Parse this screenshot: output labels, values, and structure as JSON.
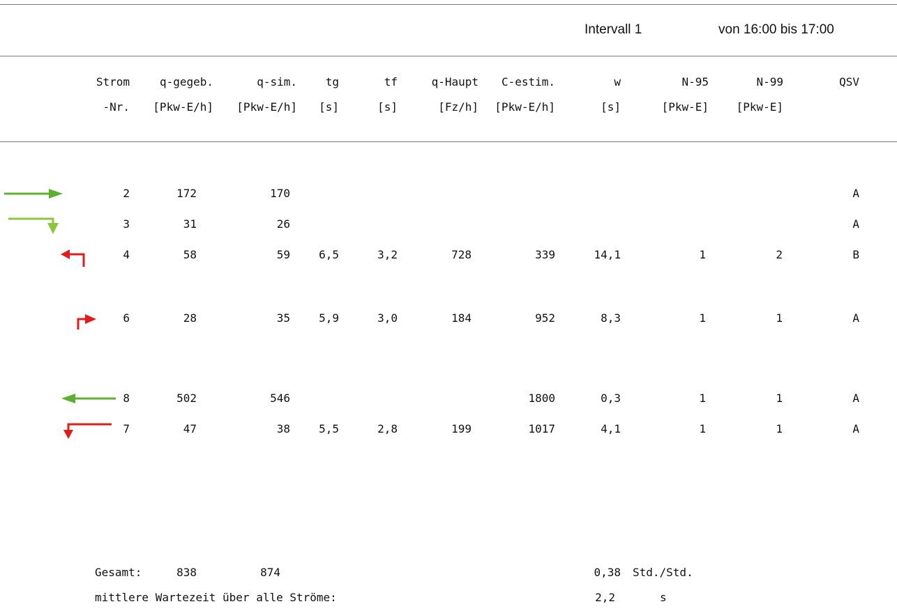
{
  "header": {
    "interval": "Intervall 1",
    "time_range": "von 16:00  bis 17:00"
  },
  "columns": {
    "line1": [
      "Strom",
      "q-gegeb.",
      "q-sim.",
      "tg",
      "tf",
      "q-Haupt",
      "C-estim.",
      "w",
      "N-95",
      "N-99",
      "QSV"
    ],
    "line2": [
      "-Nr.",
      "[Pkw-E/h]",
      "[Pkw-E/h]",
      "[s]",
      "[s]",
      "[Fz/h]",
      "[Pkw-E/h]",
      "[s]",
      "[Pkw-E]",
      "[Pkw-E]",
      ""
    ]
  },
  "rows": [
    {
      "nr": "2",
      "q_gegeb": "172",
      "q_sim": "170",
      "tg": "",
      "tf": "",
      "q_haupt": "",
      "c_estim": "",
      "w": "",
      "n95": "",
      "n99": "",
      "qsv": "A",
      "icon": "arrow-straight-right-icon",
      "color": "#5fb030"
    },
    {
      "nr": "3",
      "q_gegeb": "31",
      "q_sim": "26",
      "tg": "",
      "tf": "",
      "q_haupt": "",
      "c_estim": "",
      "w": "",
      "n95": "",
      "n99": "",
      "qsv": "A",
      "icon": "arrow-right-turn-down-icon",
      "color": "#8cc63f"
    },
    {
      "nr": "4",
      "q_gegeb": "58",
      "q_sim": "59",
      "tg": "6,5",
      "tf": "3,2",
      "q_haupt": "728",
      "c_estim": "339",
      "w": "14,1",
      "n95": "1",
      "n99": "2",
      "qsv": "B",
      "icon": "arrow-up-turn-left-icon",
      "color": "#e21b1b"
    },
    {
      "nr": "6",
      "q_gegeb": "28",
      "q_sim": "35",
      "tg": "5,9",
      "tf": "3,0",
      "q_haupt": "184",
      "c_estim": "952",
      "w": "8,3",
      "n95": "1",
      "n99": "1",
      "qsv": "A",
      "icon": "arrow-up-turn-right-icon",
      "color": "#e21b1b"
    },
    {
      "nr": "8",
      "q_gegeb": "502",
      "q_sim": "546",
      "tg": "",
      "tf": "",
      "q_haupt": "",
      "c_estim": "1800",
      "w": "0,3",
      "n95": "1",
      "n99": "1",
      "qsv": "A",
      "icon": "arrow-straight-left-icon",
      "color": "#5fb030"
    },
    {
      "nr": "7",
      "q_gegeb": "47",
      "q_sim": "38",
      "tg": "5,5",
      "tf": "2,8",
      "q_haupt": "199",
      "c_estim": "1017",
      "w": "4,1",
      "n95": "1",
      "n99": "1",
      "qsv": "A",
      "icon": "arrow-left-turn-down-icon",
      "color": "#e21b1b"
    }
  ],
  "summary": {
    "gesamt_label": "Gesamt:",
    "gesamt_q_gegeb": "838",
    "gesamt_q_sim": "874",
    "gesamt_value": "0,38",
    "gesamt_unit": "Std./Std.",
    "wait_label": "mittlere Wartezeit über alle Ströme:",
    "wait_value": "2,2",
    "wait_unit": "s"
  }
}
